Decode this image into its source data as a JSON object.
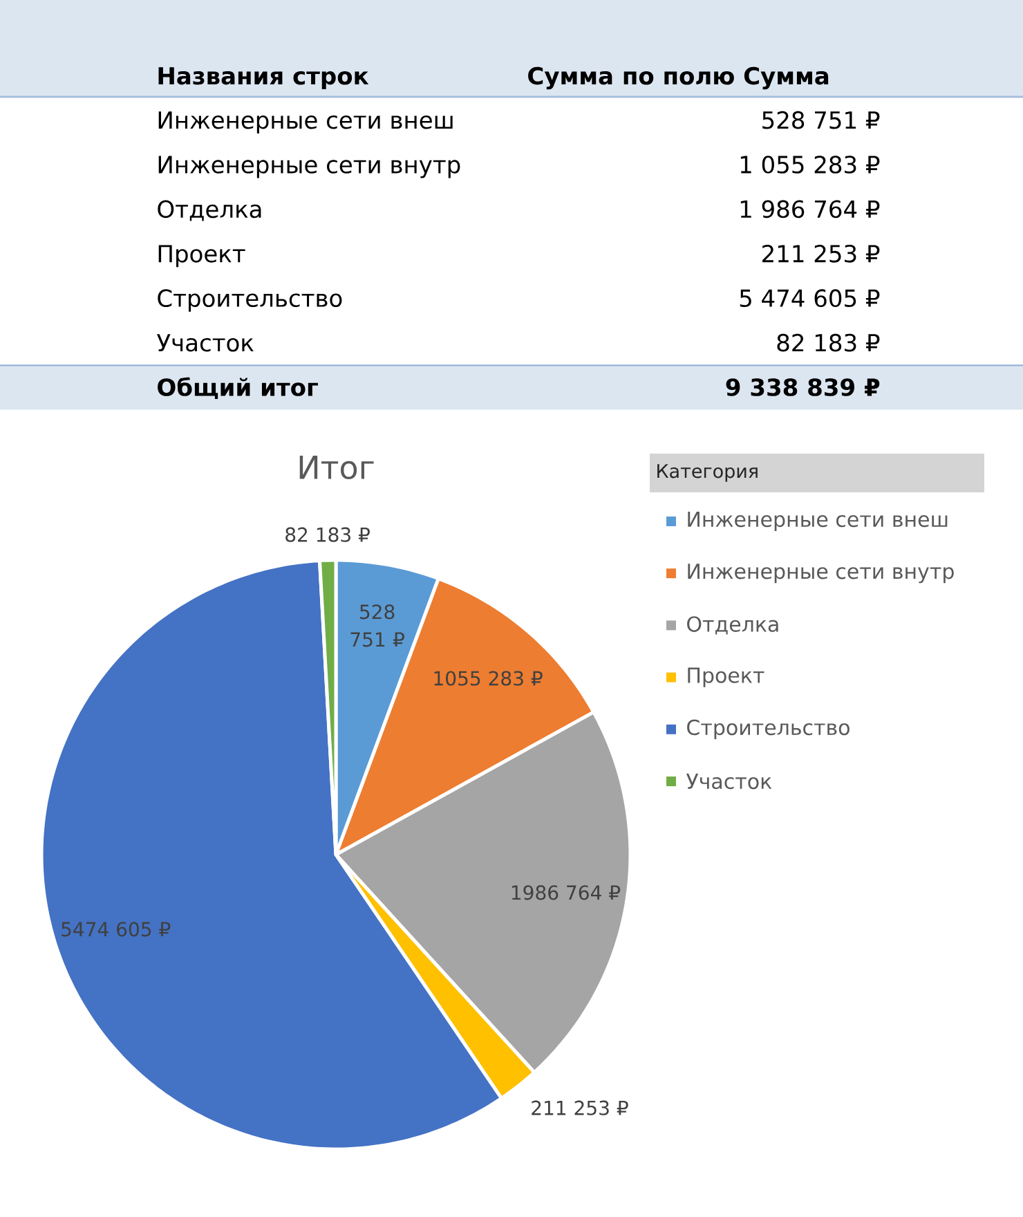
{
  "chart_data": [
    {
      "type": "other",
      "annotations": [
        "Названия строк",
        "Сумма по полю Сумма",
        "Инженерные сети внеш",
        "528 751 ₽",
        "Инженерные сети внутр",
        "1 055 283 ₽",
        "Отделка",
        "1 986 764 ₽",
        "Проект",
        "211 253 ₽",
        "Строительство",
        "5 474 605 ₽",
        "Участок",
        "82 183 ₽",
        "Общий итог",
        "9 338 839 ₽"
      ]
    },
    {
      "type": "pie",
      "title": "Итог",
      "legend_title": "Категория",
      "legend": "right",
      "categories": [
        "Инженерные сети внеш",
        "Инженерные сети внутр",
        "Отделка",
        "Проект",
        "Строительство",
        "Участок"
      ],
      "values": [
        528751,
        1055283,
        1986764,
        211253,
        5474605,
        82183
      ],
      "colors": [
        "#5B9BD5",
        "#ED7D31",
        "#A5A5A5",
        "#FFC000",
        "#4472C4",
        "#70AD47"
      ],
      "value_labels": [
        "528 751 ₽",
        "1055 283 ₽",
        "1986 764 ₽",
        "211 253 ₽",
        "5474 605 ₽",
        "82 183 ₽"
      ]
    }
  ]
}
